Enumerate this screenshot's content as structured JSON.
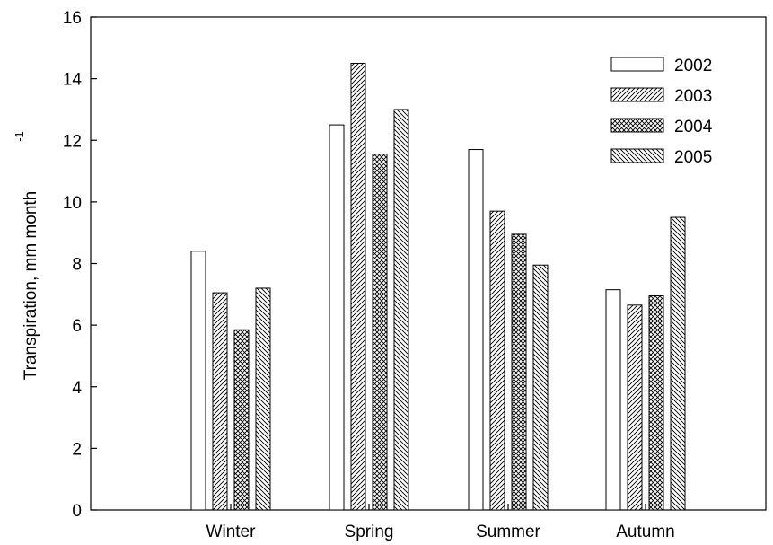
{
  "chart_data": {
    "type": "bar",
    "title": "",
    "xlabel": "",
    "ylabel": "Transpiration, mm month",
    "ylabel_superscript": "-1",
    "categories": [
      "Winter",
      "Spring",
      "Summer",
      "Autumn"
    ],
    "series": [
      {
        "name": "2002",
        "values": [
          8.4,
          12.5,
          11.7,
          7.15
        ],
        "pattern": "none"
      },
      {
        "name": "2003",
        "values": [
          7.05,
          14.5,
          9.7,
          6.65
        ],
        "pattern": "diag-forward"
      },
      {
        "name": "2004",
        "values": [
          5.85,
          11.55,
          8.95,
          6.95
        ],
        "pattern": "crosshatch"
      },
      {
        "name": "2005",
        "values": [
          7.2,
          13.0,
          7.95,
          9.5
        ],
        "pattern": "diag-back"
      }
    ],
    "ylim": [
      0,
      16
    ],
    "yticks": [
      0,
      2,
      4,
      6,
      8,
      10,
      12,
      14,
      16
    ],
    "grid": false,
    "legend_position": "top-right",
    "colors": {
      "bar_fill": "#ffffff",
      "bar_stroke": "#000000",
      "axis": "#000000"
    }
  }
}
